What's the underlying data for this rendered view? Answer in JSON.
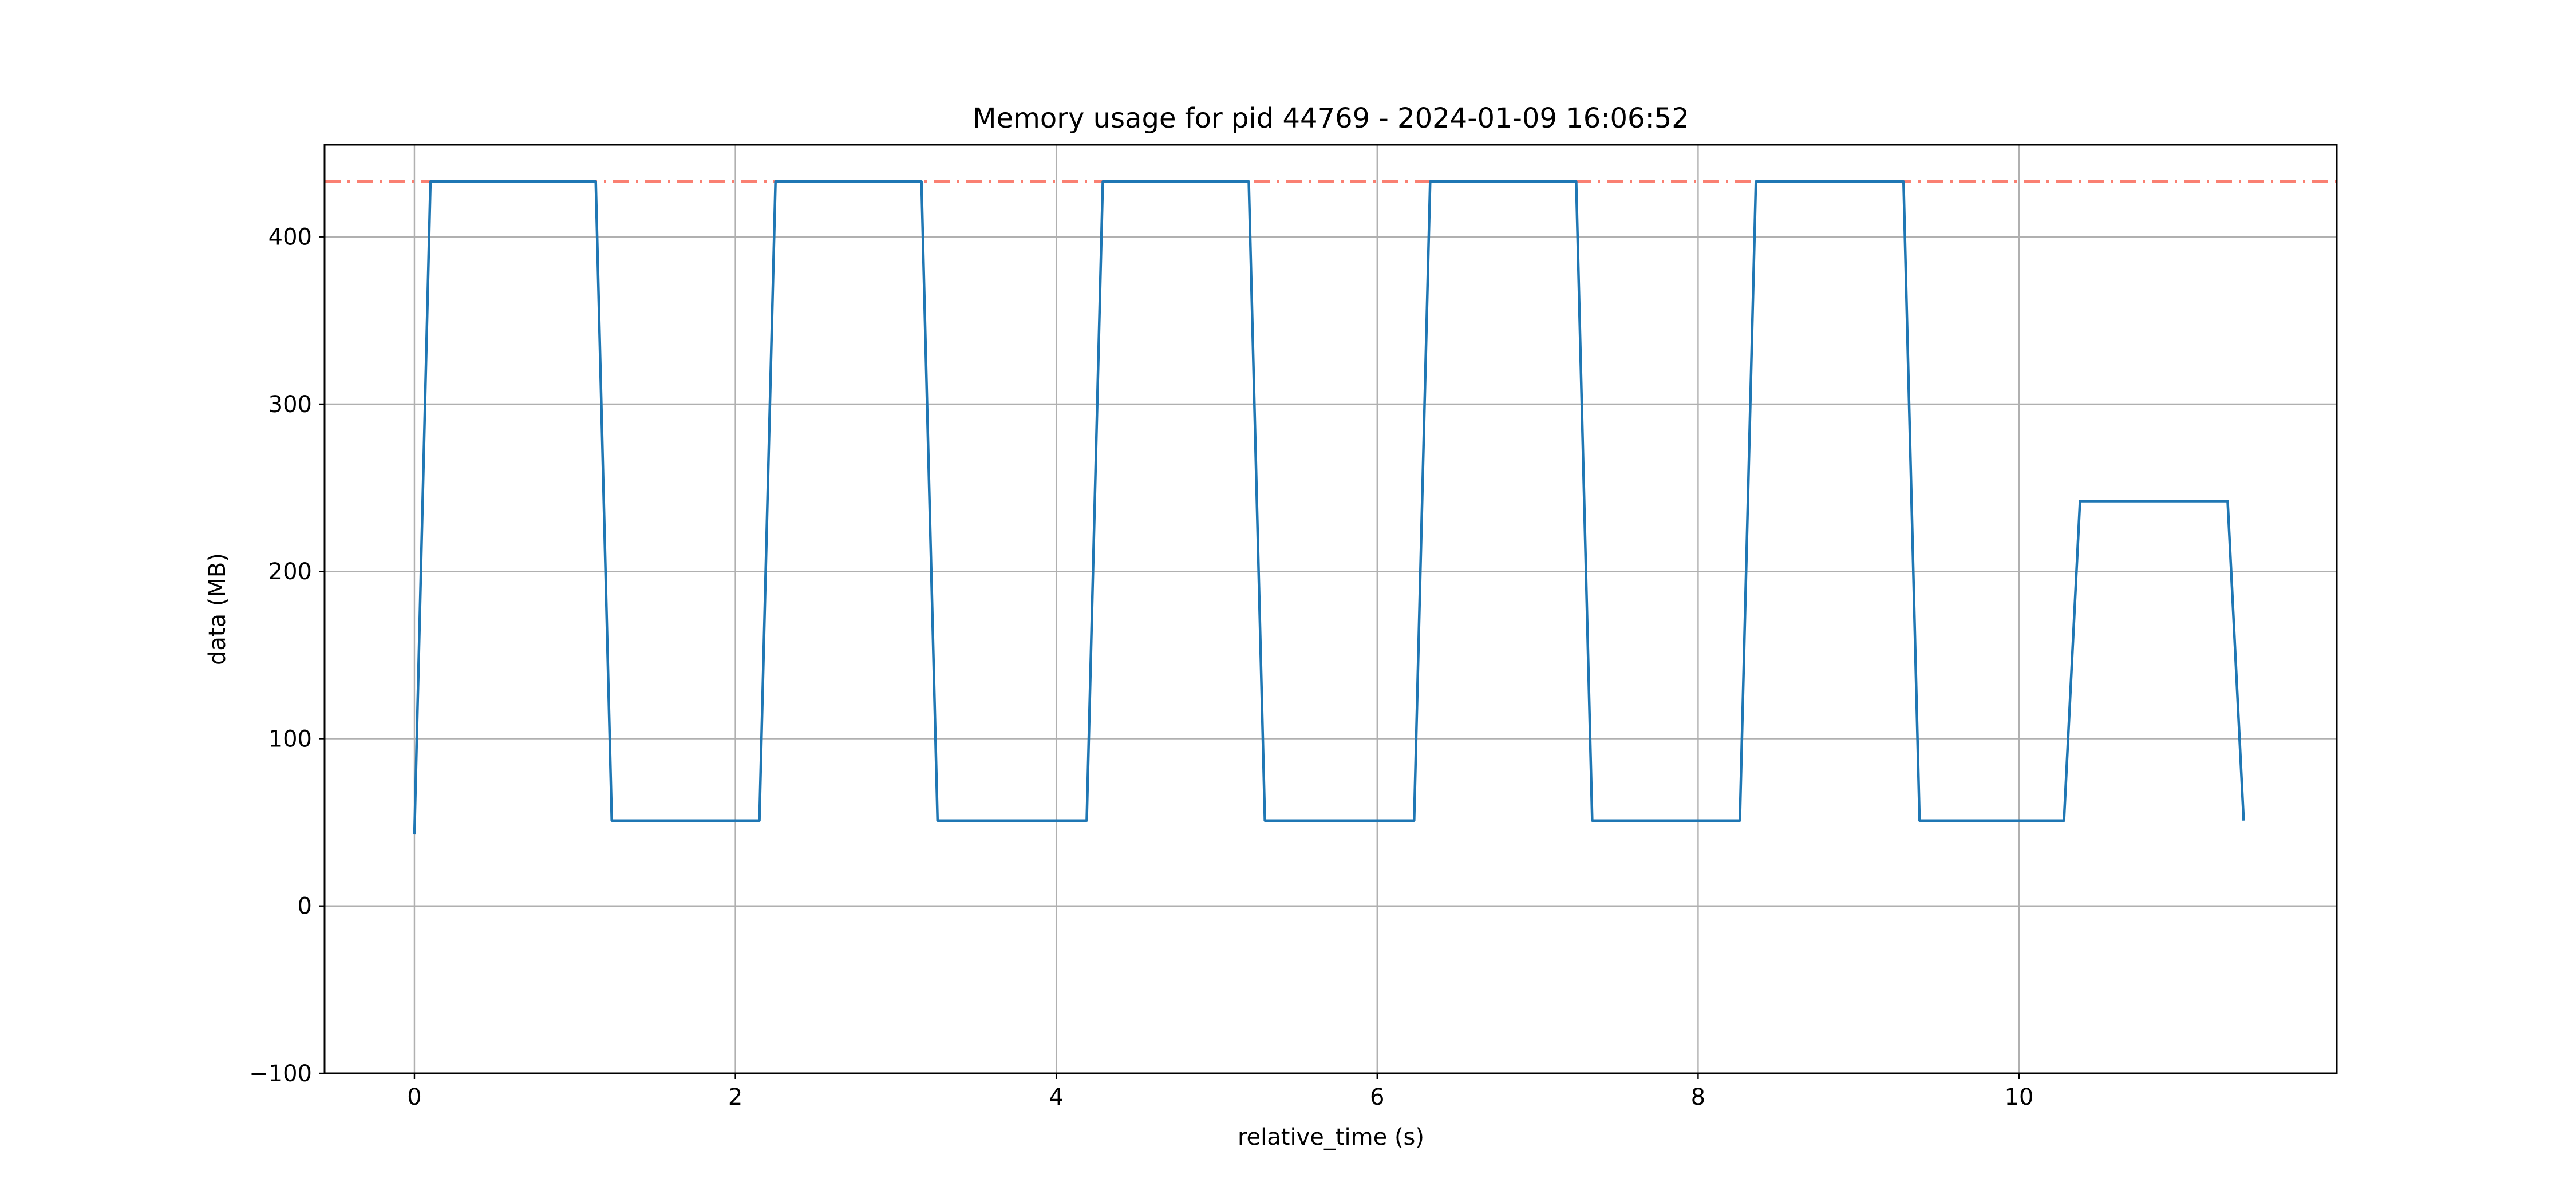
{
  "chart_data": {
    "type": "line",
    "title": "Memory usage for pid 44769 - 2024-01-09 16:06:52",
    "xlabel": "relative_time (s)",
    "ylabel": "data (MB)",
    "xlim": [
      -0.56,
      11.98
    ],
    "ylim": [
      -100,
      455
    ],
    "xticks": [
      0,
      2,
      4,
      6,
      8,
      10
    ],
    "yticks": [
      -100,
      0,
      100,
      200,
      300,
      400
    ],
    "xtick_labels": [
      "0",
      "2",
      "4",
      "6",
      "8",
      "10"
    ],
    "ytick_labels": [
      "−100",
      "0",
      "100",
      "200",
      "300",
      "400"
    ],
    "grid": true,
    "legend": "none",
    "reference_line": {
      "type": "horizontal",
      "y": 433,
      "style": "dash-dot",
      "color": "#fa8072"
    },
    "series": [
      {
        "color": "#1f77b4",
        "x": [
          0.0,
          0.1,
          1.13,
          1.23,
          2.15,
          2.25,
          3.16,
          3.26,
          4.19,
          4.29,
          5.2,
          5.3,
          6.23,
          6.33,
          7.24,
          7.34,
          8.26,
          8.36,
          9.28,
          9.38,
          10.28,
          10.38,
          11.3,
          11.4
        ],
        "y": [
          43,
          433,
          433,
          51,
          51,
          433,
          433,
          51,
          51,
          433,
          433,
          51,
          51,
          433,
          433,
          51,
          51,
          433,
          433,
          51,
          51,
          242,
          242,
          51
        ]
      }
    ]
  }
}
